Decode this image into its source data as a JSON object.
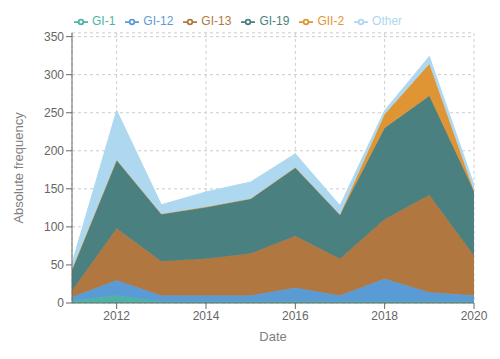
{
  "chart_data": {
    "type": "area",
    "stacked": true,
    "x": [
      2011,
      2012,
      2013,
      2014,
      2015,
      2016,
      2017,
      2018,
      2019,
      2020
    ],
    "series": [
      {
        "name": "GI-1",
        "color": "#4db3a4",
        "values": [
          3,
          10,
          2,
          2,
          2,
          2,
          2,
          2,
          2,
          2
        ]
      },
      {
        "name": "GI-12",
        "color": "#5b9bd5",
        "values": [
          5,
          20,
          8,
          8,
          8,
          18,
          8,
          30,
          12,
          8
        ]
      },
      {
        "name": "GI-13",
        "color": "#b07840",
        "values": [
          8,
          68,
          45,
          48,
          55,
          68,
          48,
          78,
          128,
          52
        ]
      },
      {
        "name": "GI-19",
        "color": "#4a8080",
        "values": [
          28,
          90,
          62,
          68,
          72,
          90,
          58,
          120,
          130,
          85
        ]
      },
      {
        "name": "GII-2",
        "color": "#e09535",
        "values": [
          0,
          0,
          0,
          0,
          0,
          0,
          0,
          18,
          42,
          0
        ]
      },
      {
        "name": "Other",
        "color": "#add8f0",
        "values": [
          8,
          65,
          12,
          20,
          22,
          18,
          12,
          5,
          10,
          8
        ]
      }
    ],
    "xlabel": "Date",
    "ylabel": "Absolute frequency",
    "xlim": [
      2011,
      2020
    ],
    "ylim": [
      0,
      355
    ],
    "xticks": [
      2012,
      2014,
      2016,
      2018,
      2020
    ],
    "yticks": [
      0,
      50,
      100,
      150,
      200,
      250,
      300,
      350
    ],
    "grid": true,
    "legend": "upper left"
  }
}
